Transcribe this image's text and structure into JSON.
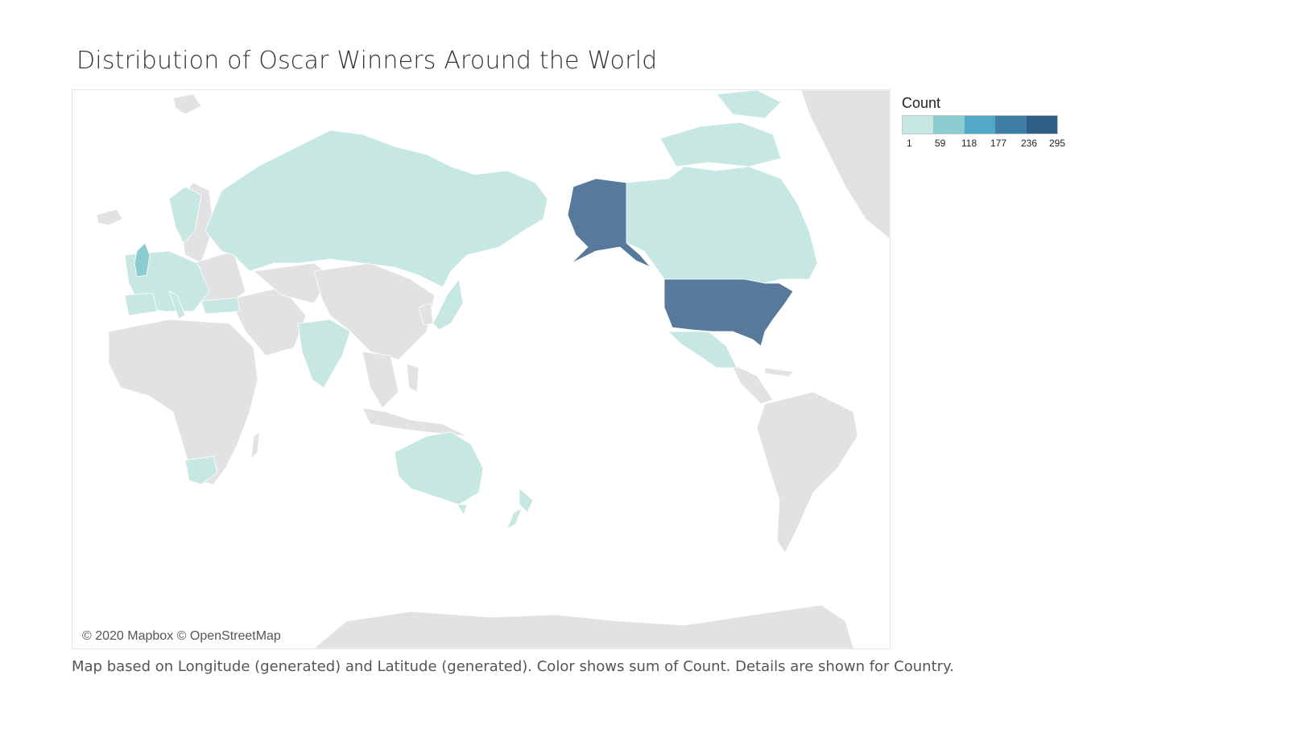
{
  "title": "Distribution of Oscar Winners Around the World",
  "legend": {
    "title": "Count",
    "ticks": [
      "1",
      "59",
      "118",
      "177",
      "236",
      "295"
    ],
    "colors": [
      "#c6e7e2",
      "#8ccbd0",
      "#52a9c7",
      "#3f7fa6",
      "#2f5e86"
    ]
  },
  "attribution": "© 2020 Mapbox © OpenStreetMap",
  "caption": "Map based on Longitude (generated) and Latitude (generated).  Color shows sum of Count.  Details are shown for Country.",
  "colors": {
    "low": "#c6e7e2",
    "uk": "#8ccbd0",
    "high": "#577a9c",
    "no_data": "#e2e2e2",
    "ocean": "#ffffff"
  },
  "regions": [
    {
      "name": "United States",
      "level": "high"
    },
    {
      "name": "United Kingdom",
      "level": "uk"
    },
    {
      "name": "Russia",
      "level": "low"
    },
    {
      "name": "Canada",
      "level": "low"
    },
    {
      "name": "Mexico",
      "level": "low"
    },
    {
      "name": "India",
      "level": "low"
    },
    {
      "name": "Australia",
      "level": "low"
    },
    {
      "name": "New Zealand",
      "level": "low"
    },
    {
      "name": "South Africa",
      "level": "low"
    },
    {
      "name": "Japan",
      "level": "low"
    },
    {
      "name": "Europe",
      "level": "low"
    }
  ]
}
